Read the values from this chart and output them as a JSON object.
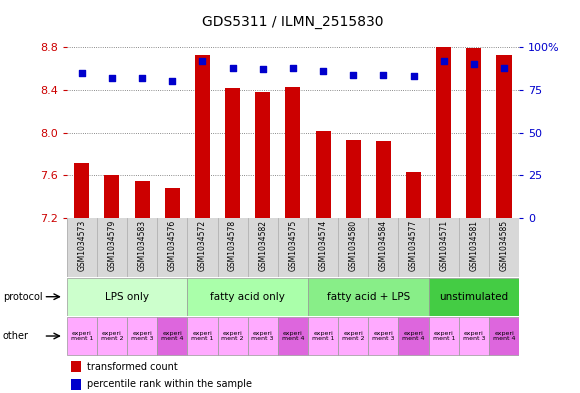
{
  "title": "GDS5311 / ILMN_2515830",
  "samples": [
    "GSM1034573",
    "GSM1034579",
    "GSM1034583",
    "GSM1034576",
    "GSM1034572",
    "GSM1034578",
    "GSM1034582",
    "GSM1034575",
    "GSM1034574",
    "GSM1034580",
    "GSM1034584",
    "GSM1034577",
    "GSM1034571",
    "GSM1034581",
    "GSM1034585"
  ],
  "bar_values": [
    7.72,
    7.6,
    7.55,
    7.48,
    8.73,
    8.42,
    8.38,
    8.43,
    8.02,
    7.93,
    7.92,
    7.63,
    8.8,
    8.79,
    8.73
  ],
  "dot_values": [
    85,
    82,
    82,
    80,
    92,
    88,
    87,
    88,
    86,
    84,
    84,
    83,
    92,
    90,
    88
  ],
  "ylim_left": [
    7.2,
    8.8
  ],
  "ylim_right": [
    0,
    100
  ],
  "yticks_left": [
    7.2,
    7.6,
    8.0,
    8.4,
    8.8
  ],
  "yticks_right": [
    0,
    25,
    50,
    75,
    100
  ],
  "bar_color": "#cc0000",
  "dot_color": "#0000cc",
  "bar_width": 0.5,
  "chart_bg": "#d8d8d8",
  "protocols": [
    {
      "label": "LPS only",
      "start": 0,
      "end": 4,
      "color": "#ccffcc"
    },
    {
      "label": "fatty acid only",
      "start": 4,
      "end": 8,
      "color": "#aaffaa"
    },
    {
      "label": "fatty acid + LPS",
      "start": 8,
      "end": 12,
      "color": "#88ee88"
    },
    {
      "label": "unstimulated",
      "start": 12,
      "end": 15,
      "color": "#44cc44"
    }
  ],
  "others": [
    {
      "label": "experi\nment 1",
      "col": 0,
      "dark": false
    },
    {
      "label": "experi\nment 2",
      "col": 1,
      "dark": false
    },
    {
      "label": "experi\nment 3",
      "col": 2,
      "dark": false
    },
    {
      "label": "experi\nment 4",
      "col": 3,
      "dark": true
    },
    {
      "label": "experi\nment 1",
      "col": 4,
      "dark": false
    },
    {
      "label": "experi\nment 2",
      "col": 5,
      "dark": false
    },
    {
      "label": "experi\nment 3",
      "col": 6,
      "dark": false
    },
    {
      "label": "experi\nment 4",
      "col": 7,
      "dark": true
    },
    {
      "label": "experi\nment 1",
      "col": 8,
      "dark": false
    },
    {
      "label": "experi\nment 2",
      "col": 9,
      "dark": false
    },
    {
      "label": "experi\nment 3",
      "col": 10,
      "dark": false
    },
    {
      "label": "experi\nment 4",
      "col": 11,
      "dark": true
    },
    {
      "label": "experi\nment 1",
      "col": 12,
      "dark": false
    },
    {
      "label": "experi\nment 3",
      "col": 13,
      "dark": false
    },
    {
      "label": "experi\nment 4",
      "col": 14,
      "dark": true
    }
  ],
  "other_light": "#ffaaff",
  "other_dark": "#dd66dd",
  "legend_bar_label": "transformed count",
  "legend_dot_label": "percentile rank within the sample",
  "protocol_label": "protocol",
  "other_label": "other",
  "bg_color": "#ffffff",
  "grid_color": "#666666",
  "tick_label_color_left": "#cc0000",
  "tick_label_color_right": "#0000cc"
}
